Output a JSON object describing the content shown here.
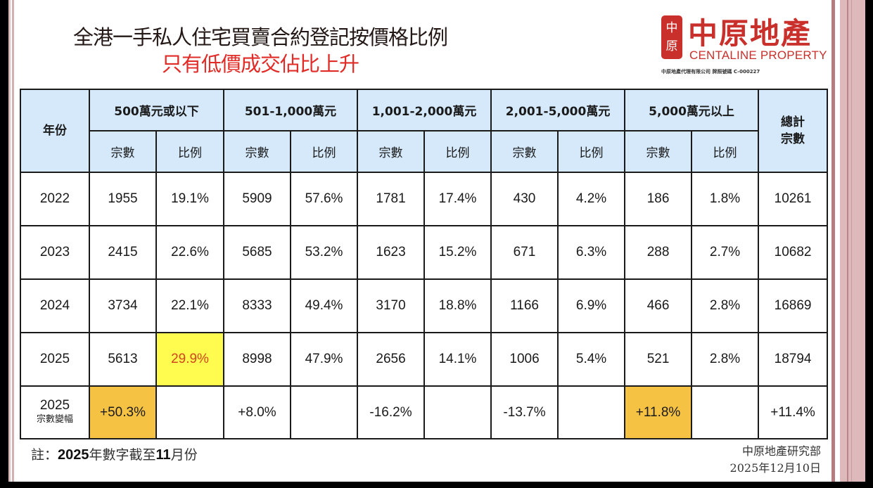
{
  "header": {
    "title": "全港一手私人住宅買賣合約登記按價格比例",
    "subtitle": "只有低價成交佔比上升"
  },
  "logo": {
    "seal_top": "中",
    "seal_bottom": "原",
    "name_cn": "中原地產",
    "name_en": "CENTALINE PROPERTY",
    "license": "中原地產代理有限公司  牌照號碼 C-000227"
  },
  "colors": {
    "title": "#231815",
    "subtitle": "#e02b27",
    "brand_red": "#c9302c",
    "header_bg": "#d5e9fb",
    "highlight_yellow": "#fffb4f",
    "highlight_orange": "#f6c244",
    "highlight_text": "#d2461e"
  },
  "table": {
    "year_header": "年份",
    "total_header": "總計\n宗數",
    "groups": [
      "500萬元或以下",
      "501-1,000萬元",
      "1,001-2,000萬元",
      "2,001-5,000萬元",
      "5,000萬元以上"
    ],
    "sub_headers": [
      "宗數",
      "比例"
    ],
    "rows": [
      {
        "year": "2022",
        "cells": [
          "1955",
          "19.1%",
          "5909",
          "57.6%",
          "1781",
          "17.4%",
          "430",
          "4.2%",
          "186",
          "1.8%"
        ],
        "total": "10261"
      },
      {
        "year": "2023",
        "cells": [
          "2415",
          "22.6%",
          "5685",
          "53.2%",
          "1623",
          "15.2%",
          "671",
          "6.3%",
          "288",
          "2.7%"
        ],
        "total": "10682"
      },
      {
        "year": "2024",
        "cells": [
          "3734",
          "22.1%",
          "8333",
          "49.4%",
          "3170",
          "18.8%",
          "1166",
          "6.9%",
          "466",
          "2.8%"
        ],
        "total": "16869"
      },
      {
        "year": "2025",
        "cells": [
          "5613",
          "29.9%",
          "8998",
          "47.9%",
          "2656",
          "14.1%",
          "1006",
          "5.4%",
          "521",
          "2.8%"
        ],
        "total": "18794"
      }
    ],
    "change_row": {
      "year": "2025",
      "label": "宗數變幅",
      "cells": [
        "+50.3%",
        "",
        "+8.0%",
        "",
        "-16.2%",
        "",
        "-13.7%",
        "",
        "+11.8%",
        ""
      ],
      "total": "+11.4%"
    }
  },
  "footer": {
    "note_prefix": "註：",
    "note_year": "2025",
    "note_mid": "年數字截至",
    "note_month": "11",
    "note_suffix": "月份",
    "source_org": "中原地產研究部",
    "source_date": "2025年12月10日"
  },
  "chart_data": {
    "type": "table",
    "title": "全港一手私人住宅買賣合約登記按價格比例",
    "subtitle": "只有低價成交佔比上升",
    "columns": [
      "年份",
      "500萬元或以下 宗數",
      "500萬元或以下 比例",
      "501-1,000萬元 宗數",
      "501-1,000萬元 比例",
      "1,001-2,000萬元 宗數",
      "1,001-2,000萬元 比例",
      "2,001-5,000萬元 宗數",
      "2,001-5,000萬元 比例",
      "5,000萬元以上 宗數",
      "5,000萬元以上 比例",
      "總計宗數"
    ],
    "categories": [
      "2022",
      "2023",
      "2024",
      "2025"
    ],
    "series": [
      {
        "name": "500萬元或以下 宗數",
        "values": [
          1955,
          2415,
          3734,
          5613
        ]
      },
      {
        "name": "500萬元或以下 比例 (%)",
        "values": [
          19.1,
          22.6,
          22.1,
          29.9
        ]
      },
      {
        "name": "501-1,000萬元 宗數",
        "values": [
          5909,
          5685,
          8333,
          8998
        ]
      },
      {
        "name": "501-1,000萬元 比例 (%)",
        "values": [
          57.6,
          53.2,
          49.4,
          47.9
        ]
      },
      {
        "name": "1,001-2,000萬元 宗數",
        "values": [
          1781,
          1623,
          3170,
          2656
        ]
      },
      {
        "name": "1,001-2,000萬元 比例 (%)",
        "values": [
          17.4,
          15.2,
          18.8,
          14.1
        ]
      },
      {
        "name": "2,001-5,000萬元 宗數",
        "values": [
          430,
          671,
          1166,
          1006
        ]
      },
      {
        "name": "2,001-5,000萬元 比例 (%)",
        "values": [
          4.2,
          6.3,
          6.9,
          5.4
        ]
      },
      {
        "name": "5,000萬元以上 宗數",
        "values": [
          186,
          288,
          466,
          521
        ]
      },
      {
        "name": "5,000萬元以上 比例 (%)",
        "values": [
          1.8,
          2.7,
          2.8,
          2.8
        ]
      },
      {
        "name": "總計宗數",
        "values": [
          10261,
          10682,
          16869,
          18794
        ]
      }
    ],
    "change_2025_pct": {
      "500萬元或以下": 50.3,
      "501-1,000萬元": 8.0,
      "1,001-2,000萬元": -16.2,
      "2,001-5,000萬元": -13.7,
      "5,000萬元以上": 11.8,
      "總計": 11.4
    },
    "annotations": [
      "註：2025年數字截至11月份",
      "中原地產研究部 2025年12月10日"
    ]
  }
}
